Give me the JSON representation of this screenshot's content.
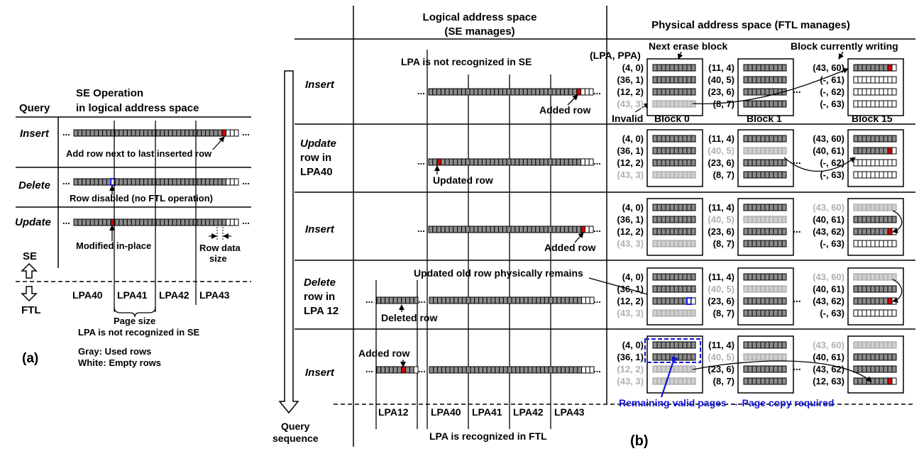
{
  "colors": {
    "used_row": "#8c8c8c",
    "empty_row": "#ffffff",
    "new_row": "#d40000",
    "disabled_row": "#1a1aff",
    "invalid_text": "#b0b0b0",
    "highlight": "#1515d6"
  },
  "panel_a": {
    "title_line1": "SE Operation",
    "title_line2": "in logical address space",
    "query_header": "Query",
    "ops": [
      "Insert",
      "Delete",
      "Update"
    ],
    "ann_insert": "Add row next to last inserted row",
    "ann_delete": "Row disabled (no FTL operation)",
    "ann_update": "Modified in-place",
    "row_data_size_1": "Row data",
    "row_data_size_2": "size",
    "se_label": "SE",
    "ftl_label": "FTL",
    "lpas": [
      "LPA40",
      "LPA41",
      "LPA42",
      "LPA43"
    ],
    "page_size": "Page size",
    "lpa_not_recognized": "LPA is not recognized in SE",
    "label": "(a)",
    "legend_gray": "Gray: Used rows",
    "legend_white": "White: Empty rows"
  },
  "panel_b": {
    "logical_header_1": "Logical address space",
    "logical_header_2": "(SE manages)",
    "physical_header": "Physical address space (FTL manages)",
    "ops": [
      [
        "Insert"
      ],
      [
        "Update",
        "row in",
        "LPA40"
      ],
      [
        "Insert"
      ],
      [
        "Delete",
        "row in",
        "LPA 12"
      ],
      [
        "Insert"
      ]
    ],
    "lpa_not_recognized": "LPA is not recognized in SE",
    "lpa_pair_header": "(LPA, PPA)",
    "next_erase_block": "Next erase block",
    "block_currently_writing": "Block currently writing",
    "invalid": "Invalid",
    "blocks": [
      "Block 0",
      "Block 1",
      "Block 15"
    ],
    "added_row": "Added row",
    "updated_row": "Updated row",
    "deleted_row": "Deleted row",
    "updated_old_row": "Updated old row physically remains",
    "remaining_valid": "Remaining valid pages → Page copy required",
    "lpas": [
      "LPA12",
      "LPA40",
      "LPA41",
      "LPA42",
      "LPA43"
    ],
    "lpa_recognized": "LPA is recognized in FTL",
    "query_sequence_1": "Query",
    "query_sequence_2": "sequence",
    "label": "(b)",
    "ellipsis": "...",
    "rows_pairs": [
      {
        "b0": [
          "(4, 0)",
          "(36, 1)",
          "(12, 2)",
          "(43, 3)"
        ],
        "b1": [
          "(11, 4)",
          "(40, 5)",
          "(23, 6)",
          "(8, 7)"
        ],
        "b15": [
          "(43, 60)",
          "(-, 61)",
          "(-, 62)",
          "(-, 63)"
        ]
      },
      {
        "b0": [
          "(4, 0)",
          "(36, 1)",
          "(12, 2)",
          "(43, 3)"
        ],
        "b1": [
          "(11, 4)",
          "(40, 5)",
          "(23, 6)",
          "(8, 7)"
        ],
        "b15": [
          "(43, 60)",
          "(40, 61)",
          "(-, 62)",
          "(-, 63)"
        ]
      },
      {
        "b0": [
          "(4, 0)",
          "(36, 1)",
          "(12, 2)",
          "(43, 3)"
        ],
        "b1": [
          "(11, 4)",
          "(40, 5)",
          "(23, 6)",
          "(8, 7)"
        ],
        "b15": [
          "(43, 60)",
          "(40, 61)",
          "(43, 62)",
          "(-, 63)"
        ]
      },
      {
        "b0": [
          "(4, 0)",
          "(36, 1)",
          "(12, 2)",
          "(43, 3)"
        ],
        "b1": [
          "(11, 4)",
          "(40, 5)",
          "(23, 6)",
          "(8, 7)"
        ],
        "b15": [
          "(43, 60)",
          "(40, 61)",
          "(43, 62)",
          "(-, 63)"
        ]
      },
      {
        "b0": [
          "(4, 0)",
          "(36, 1)",
          "(12, 2)",
          "(43, 3)"
        ],
        "b1": [
          "(11, 4)",
          "(40, 5)",
          "(23, 6)",
          "(8, 7)"
        ],
        "b15": [
          "(43, 60)",
          "(40, 61)",
          "(43, 62)",
          "(12, 63)"
        ]
      }
    ]
  }
}
